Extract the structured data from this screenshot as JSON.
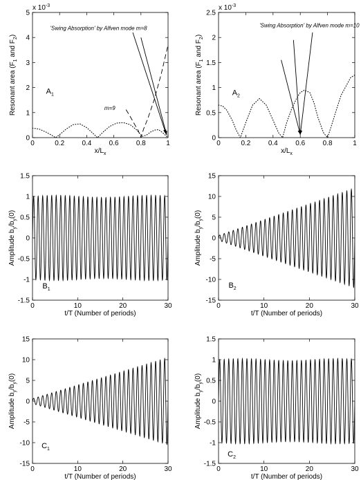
{
  "chart_data": [
    {
      "id": "A1",
      "type": "line",
      "panel_label": "A",
      "panel_sub": "1",
      "xlabel": "x/L",
      "xlabel_sub": "x",
      "ylabel": "Resonant area (F",
      "ylabel_rest": [
        "1",
        " and F",
        "2",
        ")"
      ],
      "exponent": "x 10",
      "exponent_power": "-3",
      "xlim": [
        0,
        1
      ],
      "ylim": [
        0,
        5
      ],
      "xticks": [
        0,
        0.2,
        0.4,
        0.6,
        0.8,
        1
      ],
      "xtick_labels": [
        "0",
        "0.2",
        "0.4",
        "0.6",
        "0.8",
        "1"
      ],
      "yticks": [
        0,
        1,
        2,
        3,
        4,
        5
      ],
      "ytick_labels": [
        "0",
        "1",
        "2",
        "3",
        "4",
        "5"
      ],
      "series": [
        {
          "style": "dotted",
          "x": [
            0,
            0.05,
            0.1,
            0.15,
            0.17,
            0.2,
            0.25,
            0.3,
            0.35,
            0.4,
            0.45,
            0.48,
            0.52,
            0.57,
            0.62,
            0.67,
            0.72,
            0.77,
            0.81,
            0.84,
            0.87,
            0.9,
            0.93,
            0.96,
            1.0
          ],
          "y": [
            0.38,
            0.34,
            0.22,
            0.07,
            0.0,
            0.12,
            0.35,
            0.52,
            0.55,
            0.4,
            0.15,
            0.0,
            0.22,
            0.45,
            0.58,
            0.6,
            0.52,
            0.3,
            0.05,
            0.1,
            0.22,
            0.3,
            0.32,
            0.2,
            0.0
          ]
        },
        {
          "style": "dashed",
          "x": [
            0.69,
            0.72,
            0.75,
            0.78,
            0.8,
            0.82,
            0.85,
            0.9,
            0.95,
            1.0
          ],
          "y": [
            1.12,
            0.85,
            0.56,
            0.28,
            0.0,
            0.35,
            0.75,
            1.55,
            2.55,
            3.7
          ]
        }
      ],
      "annotations": [
        {
          "text": "'Swing Absorption'  by Alfven mode m=8",
          "x": 0.13,
          "y": 4.3
        },
        {
          "text": "m=9",
          "x": 0.53,
          "y": 1.1
        }
      ],
      "arrows": [
        {
          "from": [
            0.74,
            4.2
          ],
          "to": [
            0.985,
            0.15
          ]
        },
        {
          "from": [
            0.8,
            4.0
          ],
          "to": [
            0.99,
            0.1
          ]
        }
      ]
    },
    {
      "id": "A2",
      "type": "line",
      "panel_label": "A",
      "panel_sub": "2",
      "xlabel": "x/L",
      "xlabel_sub": "x",
      "ylabel": "Resonant area (F",
      "ylabel_rest": [
        "1",
        " and F",
        "2",
        ")"
      ],
      "exponent": "x 10",
      "exponent_power": "-3",
      "xlim": [
        0,
        1
      ],
      "ylim": [
        0,
        2.5
      ],
      "xticks": [
        0,
        0.2,
        0.4,
        0.6,
        0.8,
        1
      ],
      "xtick_labels": [
        "0",
        "0.2",
        "0.4",
        "0.6",
        "0.8",
        "1"
      ],
      "yticks": [
        0,
        0.5,
        1,
        1.5,
        2,
        2.5
      ],
      "ytick_labels": [
        "0",
        "0.5",
        "1",
        "1.5",
        "2",
        "2.5"
      ],
      "series": [
        {
          "style": "dotted",
          "x": [
            0,
            0.03,
            0.06,
            0.1,
            0.13,
            0.16,
            0.2,
            0.25,
            0.3,
            0.35,
            0.4,
            0.44,
            0.47,
            0.5,
            0.54,
            0.58,
            0.6,
            0.63,
            0.67,
            0.7,
            0.73,
            0.77,
            0.8,
            0.83,
            0.87,
            0.9,
            0.94,
            0.97,
            1.0
          ],
          "y": [
            0.65,
            0.63,
            0.55,
            0.35,
            0.15,
            0.0,
            0.3,
            0.65,
            0.78,
            0.65,
            0.35,
            0.1,
            0.0,
            0.3,
            0.6,
            0.82,
            0.9,
            0.95,
            0.9,
            0.7,
            0.4,
            0.1,
            0.0,
            0.25,
            0.6,
            0.85,
            1.05,
            1.2,
            1.25
          ]
        }
      ],
      "annotations": [
        {
          "text": "'Swing Absorption'  by Alfven mode m=10",
          "x": 0.3,
          "y": 2.2
        }
      ],
      "arrows": [
        {
          "from": [
            0.46,
            1.55
          ],
          "to": [
            0.6,
            0.06
          ]
        },
        {
          "from": [
            0.55,
            1.95
          ],
          "to": [
            0.6,
            0.06
          ]
        },
        {
          "from": [
            0.69,
            2.1
          ],
          "to": [
            0.6,
            0.06
          ]
        }
      ]
    },
    {
      "id": "B1",
      "type": "line",
      "panel_label": "B",
      "panel_sub": "1",
      "xlabel": "t/T (Number of periods)",
      "ylabel": "Amplitude  b",
      "ylabel_rest": [
        "y",
        "/b",
        "y",
        "(0)"
      ],
      "xlim": [
        0,
        30
      ],
      "ylim": [
        -1.5,
        1.5
      ],
      "xticks": [
        0,
        10,
        20,
        30
      ],
      "xtick_labels": [
        "0",
        "10",
        "20",
        "30"
      ],
      "yticks": [
        -1.5,
        -1,
        -0.5,
        0,
        0.5,
        1,
        1.5
      ],
      "ytick_labels": [
        "-1.5",
        "-1",
        "-0.5",
        "0",
        "0.5",
        "1",
        "1.5"
      ],
      "oscillation": {
        "cycles": 30,
        "start": 1.0,
        "end": 1.05,
        "growth": "constant"
      }
    },
    {
      "id": "B2",
      "type": "line",
      "panel_label": "B",
      "panel_sub": "2",
      "xlabel": "t/T (Number of periods)",
      "ylabel": "Amplitude  b",
      "ylabel_rest": [
        "y",
        "/b",
        "y",
        "(0)"
      ],
      "xlim": [
        0,
        30
      ],
      "ylim": [
        -15,
        15
      ],
      "xticks": [
        0,
        10,
        20,
        30
      ],
      "xtick_labels": [
        "0",
        "10",
        "20",
        "30"
      ],
      "yticks": [
        -15,
        -10,
        -5,
        0,
        5,
        10,
        15
      ],
      "ytick_labels": [
        "-15",
        "-10",
        "-5",
        "0",
        "5",
        "10",
        "15"
      ],
      "oscillation": {
        "cycles": 30,
        "start": 0.6,
        "end": 12.0,
        "growth": "linear"
      }
    },
    {
      "id": "C1",
      "type": "line",
      "panel_label": "C",
      "panel_sub": "1",
      "xlabel": "t/T (Number of periods)",
      "ylabel": "Amplitude  b",
      "ylabel_rest": [
        "y",
        "/b",
        "y",
        "(0)"
      ],
      "xlim": [
        0,
        30
      ],
      "ylim": [
        -15,
        15
      ],
      "xticks": [
        0,
        10,
        20,
        30
      ],
      "xtick_labels": [
        "0",
        "10",
        "20",
        "30"
      ],
      "yticks": [
        -15,
        -10,
        -5,
        0,
        5,
        10,
        15
      ],
      "ytick_labels": [
        "-15",
        "-10",
        "-5",
        "0",
        "5",
        "10",
        "15"
      ],
      "oscillation": {
        "cycles": 30,
        "start": 0.6,
        "end": 10.5,
        "growth": "linear"
      }
    },
    {
      "id": "C2",
      "type": "line",
      "panel_label": "C",
      "panel_sub": "2",
      "xlabel": "t/T (Number of periods)",
      "ylabel": "Amplitude  b",
      "ylabel_rest": [
        "y",
        "/b",
        "y",
        "(0)"
      ],
      "xlim": [
        0,
        30
      ],
      "ylim": [
        -1.5,
        1.5
      ],
      "xticks": [
        0,
        10,
        20,
        30
      ],
      "xtick_labels": [
        "0",
        "10",
        "20",
        "30"
      ],
      "yticks": [
        -1.5,
        -1,
        -0.5,
        0,
        0.5,
        1,
        1.5
      ],
      "ytick_labels": [
        "-1.5",
        "-1",
        "-0.5",
        "0",
        "0.5",
        "1",
        "1.5"
      ],
      "oscillation": {
        "cycles": 30,
        "start": 1.0,
        "end": 1.05,
        "growth": "constant"
      }
    }
  ]
}
